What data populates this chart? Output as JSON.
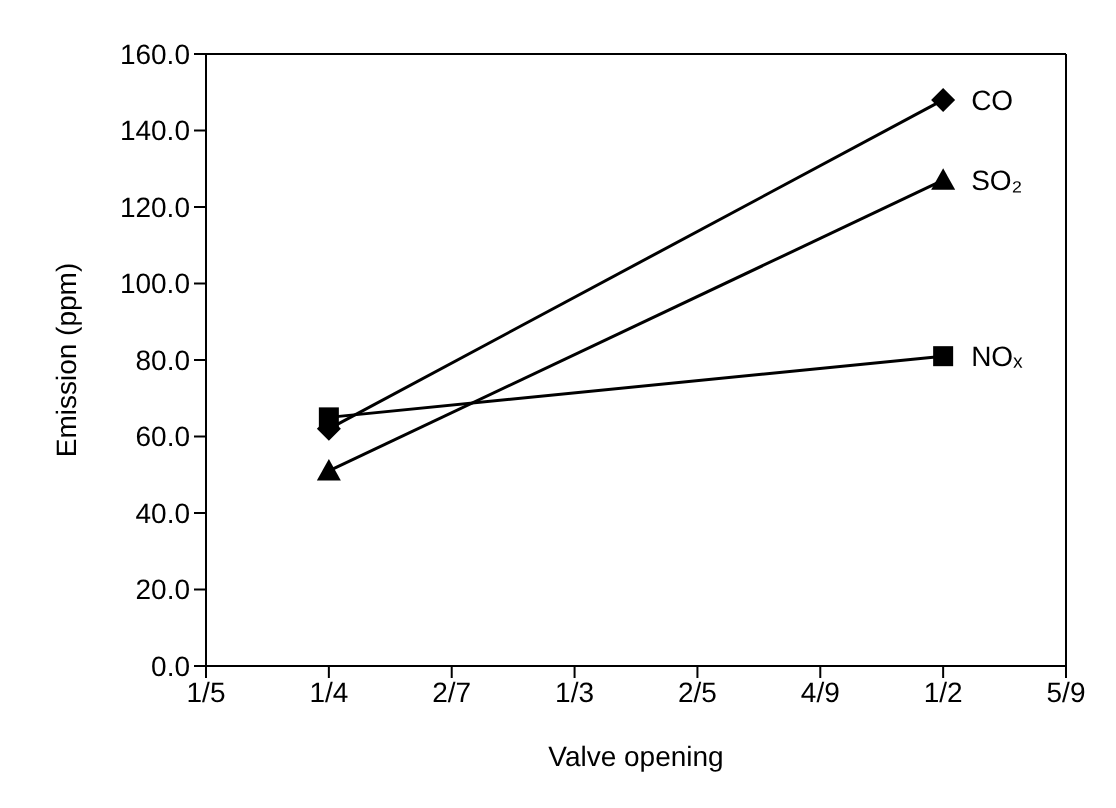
{
  "chart_data": {
    "type": "line",
    "xlabel": "Valve opening",
    "ylabel": "Emission (ppm)",
    "categories": [
      "1/5",
      "1/4",
      "2/7",
      "1/3",
      "2/5",
      "4/9",
      "1/2",
      "5/9"
    ],
    "series": [
      {
        "name": "CO",
        "color": "#000000",
        "marker": "diamond",
        "values": [
          null,
          62,
          null,
          null,
          null,
          null,
          148,
          null
        ]
      },
      {
        "name": "SO₂",
        "color": "#000000",
        "marker": "triangle",
        "values": [
          null,
          51,
          null,
          null,
          null,
          null,
          127,
          null
        ]
      },
      {
        "name": "NOₓ",
        "color": "#000000",
        "marker": "square",
        "values": [
          null,
          65,
          null,
          null,
          null,
          null,
          81,
          null
        ]
      }
    ],
    "ylim": [
      0,
      160
    ],
    "yticks": [
      {
        "value": 0,
        "label": "0.0"
      },
      {
        "value": 20,
        "label": "20.0"
      },
      {
        "value": 40,
        "label": "40.0"
      },
      {
        "value": 60,
        "label": "60.0"
      },
      {
        "value": 80,
        "label": "80.0"
      },
      {
        "value": 100,
        "label": "100.0"
      },
      {
        "value": 120,
        "label": "120.0"
      },
      {
        "value": 140,
        "label": "140.0"
      },
      {
        "value": 160,
        "label": "160.0"
      }
    ],
    "line_style": "solid"
  }
}
